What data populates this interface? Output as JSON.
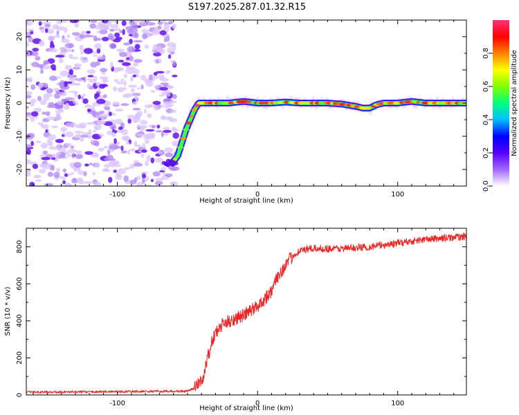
{
  "title": "S197.2025.287.01.32.R15",
  "chart_data": [
    {
      "type": "heatmap",
      "name": "spectrogram",
      "xlabel": "Height of straight line (km)",
      "ylabel": "Frequency (Hz)",
      "xlim": [
        -165,
        149
      ],
      "ylim": [
        -25,
        25
      ],
      "xticks": [
        -100,
        0,
        100
      ],
      "yticks": [
        -20,
        -10,
        0,
        10,
        20
      ],
      "noise_region_x": [
        -165,
        -58
      ],
      "ridge": {
        "x": [
          -60,
          -57,
          -54,
          -51,
          -48,
          -45,
          -42,
          -40,
          -30,
          -20,
          -10,
          0,
          10,
          20,
          30,
          40,
          50,
          60,
          70,
          75,
          80,
          85,
          90,
          100,
          110,
          120,
          130,
          140,
          149
        ],
        "hz": [
          -17.5,
          -16,
          -12,
          -8,
          -5,
          -2,
          0,
          0,
          0,
          0,
          0.5,
          0,
          0,
          0.3,
          0,
          0,
          0,
          -0.3,
          -1,
          -1.5,
          -1.5,
          -0.5,
          0,
          0,
          0.5,
          0,
          0,
          0,
          0
        ]
      },
      "colorbar": {
        "label": "Normalized spectral amplitude",
        "ticks": [
          0.0,
          0.2,
          0.4,
          0.6,
          0.8
        ],
        "tick_labels": [
          "0.0",
          "0.2",
          "0.4",
          "0.6",
          "0.8"
        ],
        "colors": [
          "#ffffff",
          "#a266ff",
          "#5500ff",
          "#0000ff",
          "#00bfff",
          "#00ff80",
          "#80ff00",
          "#ffff00",
          "#ff8000",
          "#ff0000",
          "#ff3377"
        ]
      }
    },
    {
      "type": "line",
      "name": "snr",
      "xlabel": "Height of straight line (km)",
      "ylabel": "SNR (10 * v/v)",
      "xlim": [
        -165,
        149
      ],
      "ylim": [
        0,
        900
      ],
      "xticks": [
        -100,
        0,
        100
      ],
      "yticks": [
        0,
        200,
        400,
        600,
        800
      ],
      "color": "#ee2222",
      "series": [
        {
          "name": "SNR trend",
          "x": [
            -165,
            -50,
            -44,
            -40,
            -38,
            -35,
            -32,
            -30,
            -28,
            -25,
            -20,
            -10,
            0,
            10,
            15,
            20,
            25,
            30,
            40,
            60,
            80,
            100,
            120,
            149
          ],
          "y": [
            15,
            20,
            40,
            90,
            140,
            220,
            300,
            330,
            350,
            380,
            400,
            430,
            480,
            560,
            650,
            700,
            750,
            780,
            790,
            790,
            800,
            820,
            840,
            855
          ]
        }
      ]
    }
  ]
}
